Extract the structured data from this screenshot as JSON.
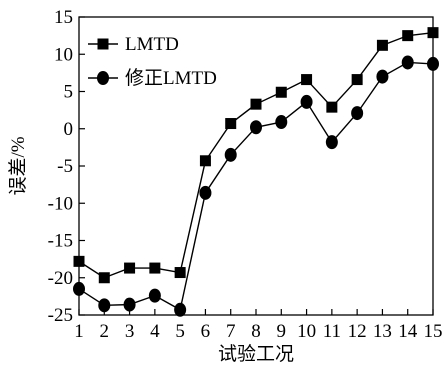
{
  "chart_data": {
    "type": "line",
    "xlabel": "试验工况",
    "ylabel": "误差/%",
    "x": [
      1,
      2,
      3,
      4,
      5,
      6,
      7,
      8,
      9,
      10,
      11,
      12,
      13,
      14,
      15
    ],
    "xlim": [
      1,
      15
    ],
    "ylim": [
      -25,
      15
    ],
    "x_ticks": [
      1,
      2,
      3,
      4,
      5,
      6,
      7,
      8,
      9,
      10,
      11,
      12,
      13,
      14,
      15
    ],
    "y_ticks": [
      -25,
      -20,
      -15,
      -10,
      -5,
      0,
      5,
      10,
      15
    ],
    "grid": false,
    "legend_position": "top-left",
    "series": [
      {
        "name": "LMTD",
        "marker": "square",
        "color": "#000000",
        "values": [
          -17.8,
          -20.0,
          -18.7,
          -18.7,
          -19.3,
          -4.3,
          0.7,
          3.3,
          4.9,
          6.6,
          2.9,
          6.6,
          11.2,
          12.5,
          12.9
        ]
      },
      {
        "name": "修正LMTD",
        "marker": "circle",
        "color": "#000000",
        "values": [
          -21.5,
          -23.7,
          -23.6,
          -22.4,
          -24.3,
          -8.6,
          -3.5,
          0.2,
          0.9,
          3.6,
          -1.8,
          2.1,
          7.0,
          8.9,
          8.7
        ]
      }
    ]
  }
}
